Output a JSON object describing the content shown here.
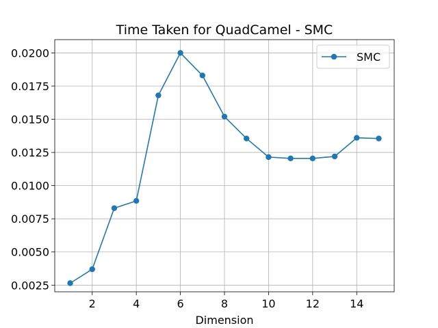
{
  "chart_data": {
    "type": "line",
    "title": "Time Taken for QuadCamel - SMC",
    "xlabel": "Dimension",
    "ylabel": "",
    "xlim": [
      0.3,
      15.7
    ],
    "ylim": [
      0.002,
      0.021
    ],
    "xticks": [
      2,
      4,
      6,
      8,
      10,
      12,
      14
    ],
    "xtick_labels": [
      "2",
      "4",
      "6",
      "8",
      "10",
      "12",
      "14"
    ],
    "yticks": [
      0.0025,
      0.005,
      0.0075,
      0.01,
      0.0125,
      0.015,
      0.0175,
      0.02
    ],
    "ytick_labels": [
      "0.0025",
      "0.0050",
      "0.0075",
      "0.0100",
      "0.0125",
      "0.0150",
      "0.0175",
      "0.0200"
    ],
    "grid": true,
    "legend_position": "top-right",
    "series": [
      {
        "name": "SMC",
        "color": "#1f77b4",
        "marker": "circle",
        "x": [
          1,
          2,
          3,
          4,
          5,
          6,
          7,
          8,
          9,
          10,
          11,
          12,
          13,
          14,
          15
        ],
        "y": [
          0.00265,
          0.0037,
          0.0083,
          0.00885,
          0.0168,
          0.02,
          0.0183,
          0.0152,
          0.01355,
          0.01215,
          0.01205,
          0.01205,
          0.0122,
          0.0136,
          0.01355
        ]
      }
    ]
  }
}
